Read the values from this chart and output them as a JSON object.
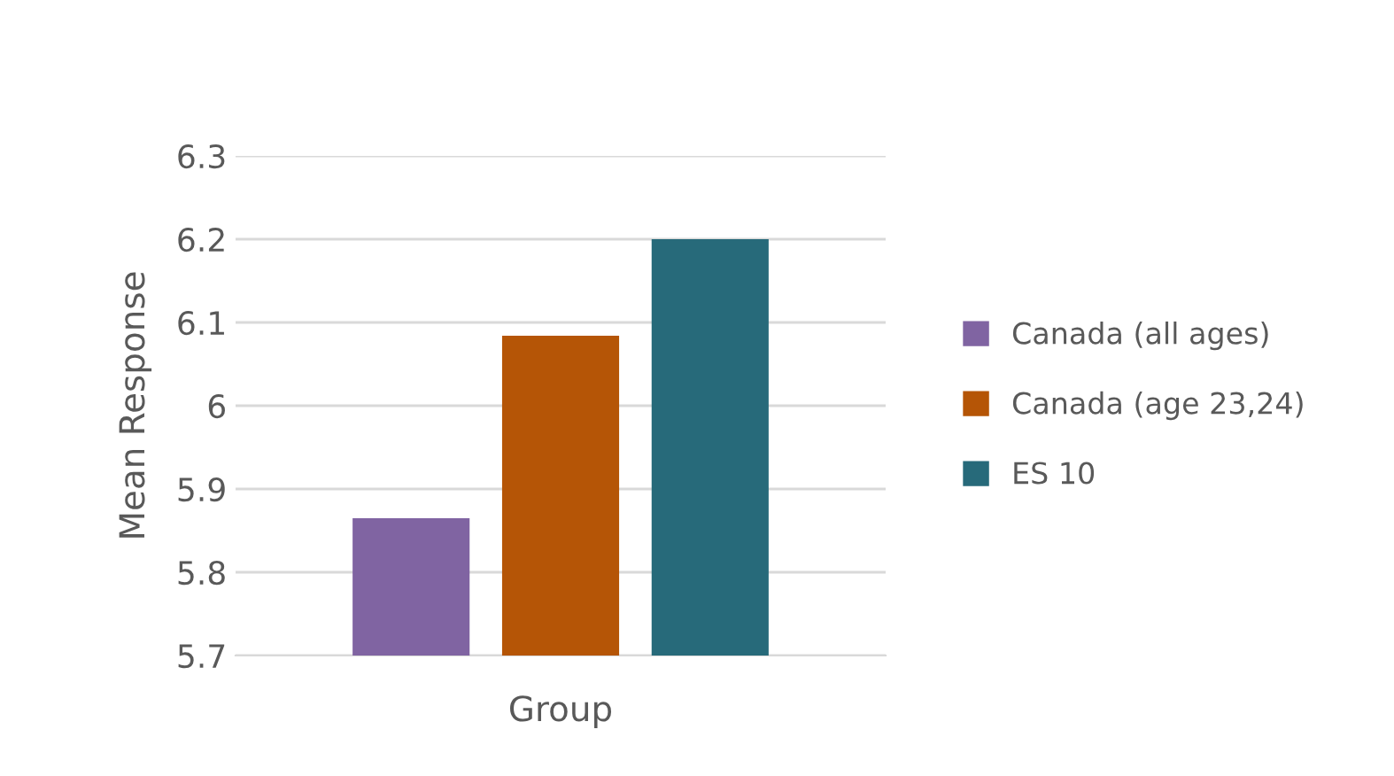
{
  "chart_data": {
    "type": "bar",
    "xlabel": "Group",
    "ylabel": "Mean Response",
    "categories": [
      null
    ],
    "series": [
      {
        "name": "Canada (all ages)",
        "color": "#8064a2",
        "values": [
          5.865
        ]
      },
      {
        "name": "Canada (age 23,24)",
        "color": "#b55506",
        "values": [
          6.084
        ]
      },
      {
        "name": "ES 10",
        "color": "#276a7a",
        "values": [
          6.2
        ]
      }
    ],
    "ylim": [
      5.7,
      6.3
    ],
    "yticks": [
      5.7,
      5.8,
      5.9,
      6,
      6.1,
      6.2,
      6.3
    ],
    "grid": "y",
    "legend": "right",
    "tick_labels": "y"
  }
}
